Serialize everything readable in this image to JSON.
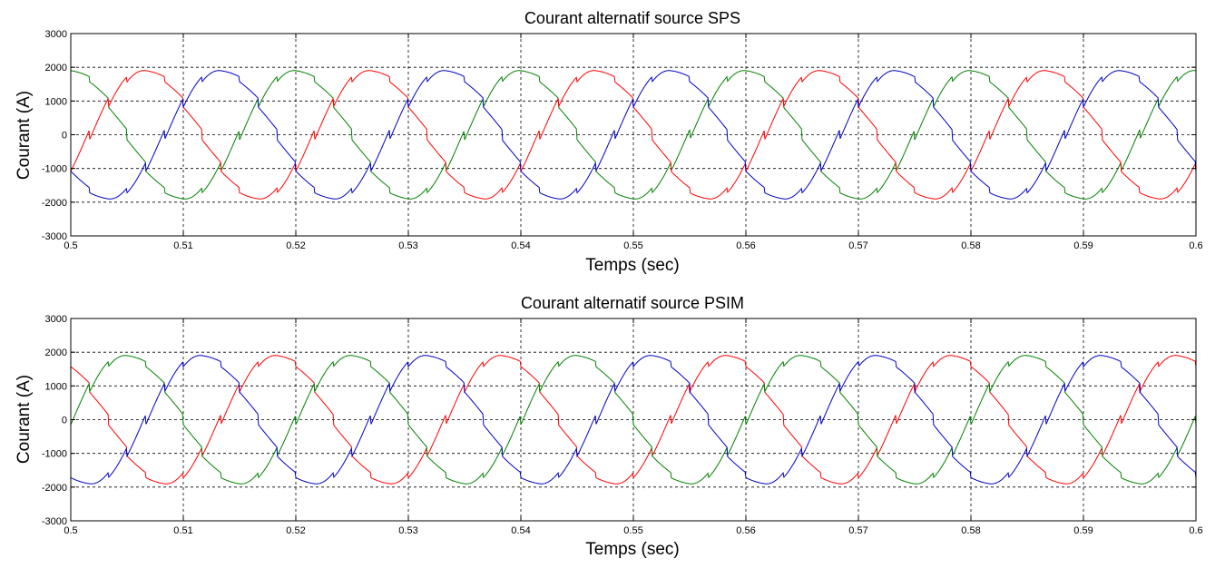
{
  "chart_data": [
    {
      "type": "line",
      "title": "Courant alternatif source SPS",
      "xlabel": "Temps (sec)",
      "ylabel": "Courant (A)",
      "xlim": [
        0.5,
        0.6
      ],
      "ylim": [
        -3000,
        3000
      ],
      "xticks": [
        0.5,
        0.51,
        0.52,
        0.53,
        0.54,
        0.55,
        0.56,
        0.57,
        0.58,
        0.59,
        0.6
      ],
      "yticks": [
        -3000,
        -2000,
        -1000,
        0,
        1000,
        2000,
        3000
      ],
      "xtick_labels": [
        "0.5",
        "0.51",
        "0.52",
        "0.53",
        "0.54",
        "0.55",
        "0.56",
        "0.57",
        "0.58",
        "0.59",
        "0.6"
      ],
      "ytick_labels": [
        "-3000",
        "-2000",
        "-1000",
        "0",
        "1000",
        "2000",
        "3000"
      ],
      "grid": true,
      "waveform": {
        "frequency_hz": 50,
        "amplitude_a": 1900,
        "ripple_a": 300,
        "ripple_cycles_per_period": 12
      },
      "series": [
        {
          "color": "#008000",
          "phase_deg": 90
        },
        {
          "color": "#ff0000",
          "phase_deg": -30
        },
        {
          "color": "#0000c8",
          "phase_deg": 210
        }
      ]
    },
    {
      "type": "line",
      "title": "Courant alternatif source PSIM",
      "xlabel": "Temps (sec)",
      "ylabel": "Courant (A)",
      "xlim": [
        0.5,
        0.6
      ],
      "ylim": [
        -3000,
        3000
      ],
      "xticks": [
        0.5,
        0.51,
        0.52,
        0.53,
        0.54,
        0.55,
        0.56,
        0.57,
        0.58,
        0.59,
        0.6
      ],
      "yticks": [
        -3000,
        -2000,
        -1000,
        0,
        1000,
        2000,
        3000
      ],
      "xtick_labels": [
        "0.5",
        "0.51",
        "0.52",
        "0.53",
        "0.54",
        "0.55",
        "0.56",
        "0.57",
        "0.58",
        "0.59",
        "0.6"
      ],
      "ytick_labels": [
        "-3000",
        "-2000",
        "-1000",
        "0",
        "1000",
        "2000",
        "3000"
      ],
      "grid": true,
      "waveform": {
        "frequency_hz": 50,
        "amplitude_a": 1900,
        "ripple_a": 300,
        "ripple_cycles_per_period": 12
      },
      "series": [
        {
          "color": "#ff0000",
          "phase_deg": 120
        },
        {
          "color": "#008000",
          "phase_deg": 0
        },
        {
          "color": "#0000c8",
          "phase_deg": 240
        }
      ]
    }
  ]
}
